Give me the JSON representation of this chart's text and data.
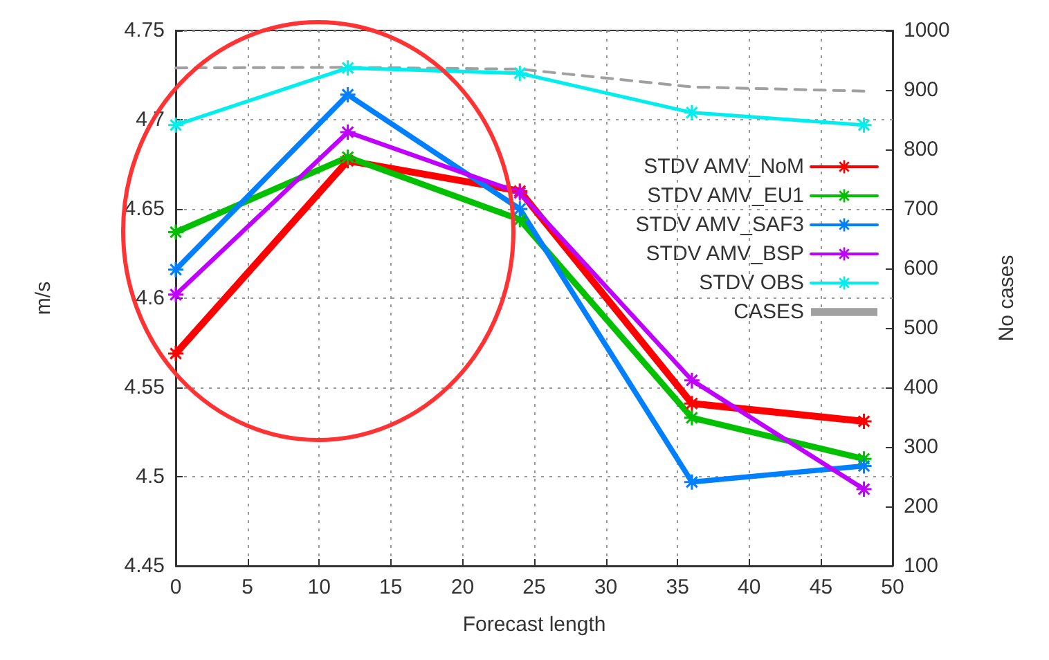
{
  "chart_data": {
    "type": "line",
    "xlabel": "Forecast length",
    "ylabel": "m/s",
    "y2label": "No cases",
    "x": [
      0,
      12,
      24,
      36,
      48
    ],
    "series": [
      {
        "name": "STDV AMV_NoM",
        "color": "#ff0000",
        "values": [
          4.569,
          4.677,
          4.66,
          4.541,
          4.531
        ]
      },
      {
        "name": "STDV AMV_EU1",
        "color": "#00c000",
        "values": [
          4.637,
          4.679,
          4.644,
          4.533,
          4.51
        ]
      },
      {
        "name": "STDV AMV_SAF3",
        "color": "#0080ff",
        "values": [
          4.616,
          4.714,
          4.65,
          4.497,
          4.506
        ]
      },
      {
        "name": "STDV AMV_BSP",
        "color": "#c000ff",
        "values": [
          4.602,
          4.693,
          4.659,
          4.554,
          4.493
        ]
      },
      {
        "name": "STDV OBS",
        "color": "#00eeee",
        "values": [
          4.697,
          4.729,
          4.726,
          4.704,
          4.697
        ]
      },
      {
        "name": "CASES",
        "color": "#a0a0a0",
        "axis": "y2",
        "marker": "none",
        "line_style": "dashed",
        "values": [
          937,
          938,
          935,
          905,
          898
        ]
      }
    ],
    "xlim": [
      0,
      50
    ],
    "xticks": [
      0,
      5,
      10,
      15,
      20,
      25,
      30,
      35,
      40,
      45,
      50
    ],
    "ylim": [
      4.45,
      4.75
    ],
    "yticks": [
      4.45,
      4.5,
      4.55,
      4.6,
      4.65,
      4.7,
      4.75
    ],
    "y2lim": [
      100,
      1000
    ],
    "y2ticks": [
      100,
      200,
      300,
      400,
      500,
      600,
      700,
      800,
      900,
      1000
    ],
    "grid": true,
    "legend": "right",
    "marker": "star",
    "line_style": "solid"
  }
}
